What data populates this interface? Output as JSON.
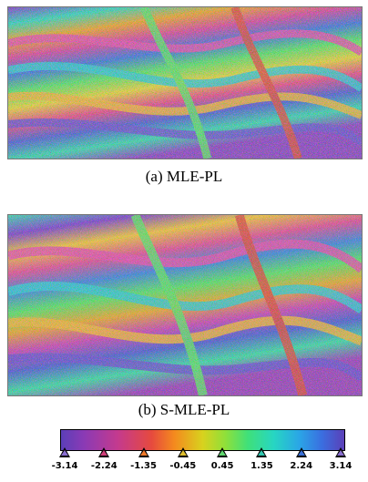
{
  "figure": {
    "panels": [
      {
        "caption": "(a)  MLE-PL"
      },
      {
        "caption": "(b)  S-MLE-PL"
      }
    ],
    "colorbar": {
      "ticks": [
        "-3.14",
        "-2.24",
        "-1.35",
        "-0.45",
        "0.45",
        "1.35",
        "2.24",
        "3.14"
      ],
      "colors": [
        "#5b3fb8",
        "#8a3ab5",
        "#c43a8e",
        "#e64a3e",
        "#f48a1e",
        "#d8d21e",
        "#8fe03a",
        "#3fe07a",
        "#27d6c2",
        "#2aa6e6",
        "#3a6fe0"
      ]
    }
  }
}
